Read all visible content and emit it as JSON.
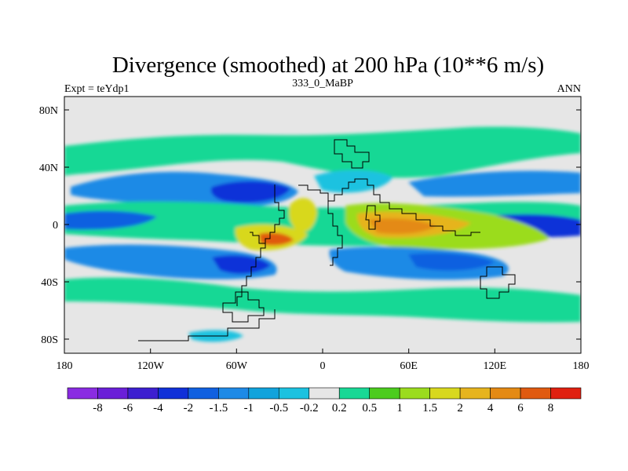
{
  "header": {
    "title": "Divergence (smoothed) at 200 hPa (10**6 m/s)",
    "left_label": "Expt = teYdp1",
    "center_label": "333_0_MaBP",
    "right_label": "ANN"
  },
  "axes": {
    "y_ticks": [
      "80N",
      "40N",
      "0",
      "40S",
      "80S"
    ],
    "x_ticks": [
      "180",
      "120W",
      "60W",
      "0",
      "60E",
      "120E",
      "180"
    ]
  },
  "colorbar": {
    "labels": [
      "-8",
      "-6",
      "-4",
      "-2",
      "-1.5",
      "-1",
      "-0.5",
      "-0.2",
      "0.2",
      "0.5",
      "1",
      "1.5",
      "2",
      "4",
      "6",
      "8"
    ],
    "colors": [
      "#8a2be2",
      "#6a1fd8",
      "#3d1fd0",
      "#1030d8",
      "#1060e0",
      "#1e8ae6",
      "#11a3dc",
      "#1cc2e0",
      "#e6e6e6",
      "#19d895",
      "#4ccc1e",
      "#9bdc1e",
      "#d8d81e",
      "#e6b41e",
      "#e48a14",
      "#e05a10",
      "#e02010"
    ]
  },
  "map": {
    "background_color": "#e6e6e6",
    "coast_color": "#000000"
  }
}
